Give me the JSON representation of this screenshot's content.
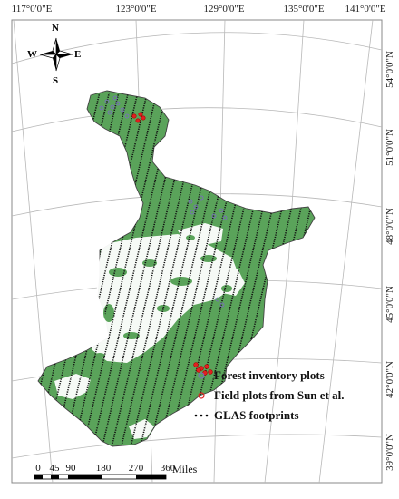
{
  "map": {
    "top_labels": [
      "117°0'0\"E",
      "123°0'0\"E",
      "129°0'0\"E",
      "135°0'0\"E",
      "141°0'0\"E"
    ],
    "right_labels": [
      "54°0'0\"N",
      "51°0'0\"N",
      "48°0'0\"N",
      "45°0'0\"N",
      "42°0'0\"N",
      "39°0'0\"N"
    ],
    "compass": {
      "n": "N",
      "s": "S",
      "e": "E",
      "w": "W"
    },
    "legend": [
      {
        "label": "Forest inventory plots",
        "symbol": "circle-outline",
        "color": "#7b68c8"
      },
      {
        "label": "Field plots from Sun et al.",
        "symbol": "circle-outline",
        "color": "#e02020"
      },
      {
        "label": "GLAS footprints",
        "symbol": "dots",
        "color": "#000000"
      }
    ],
    "scale_bar": {
      "ticks": [
        "0",
        "45",
        "90",
        "180",
        "270",
        "360"
      ],
      "unit": "Miles"
    },
    "colors": {
      "forest": "#5aa35a",
      "nonforest": "#ffffff",
      "outline": "#444444",
      "graticule": "#b5b5b5"
    }
  }
}
